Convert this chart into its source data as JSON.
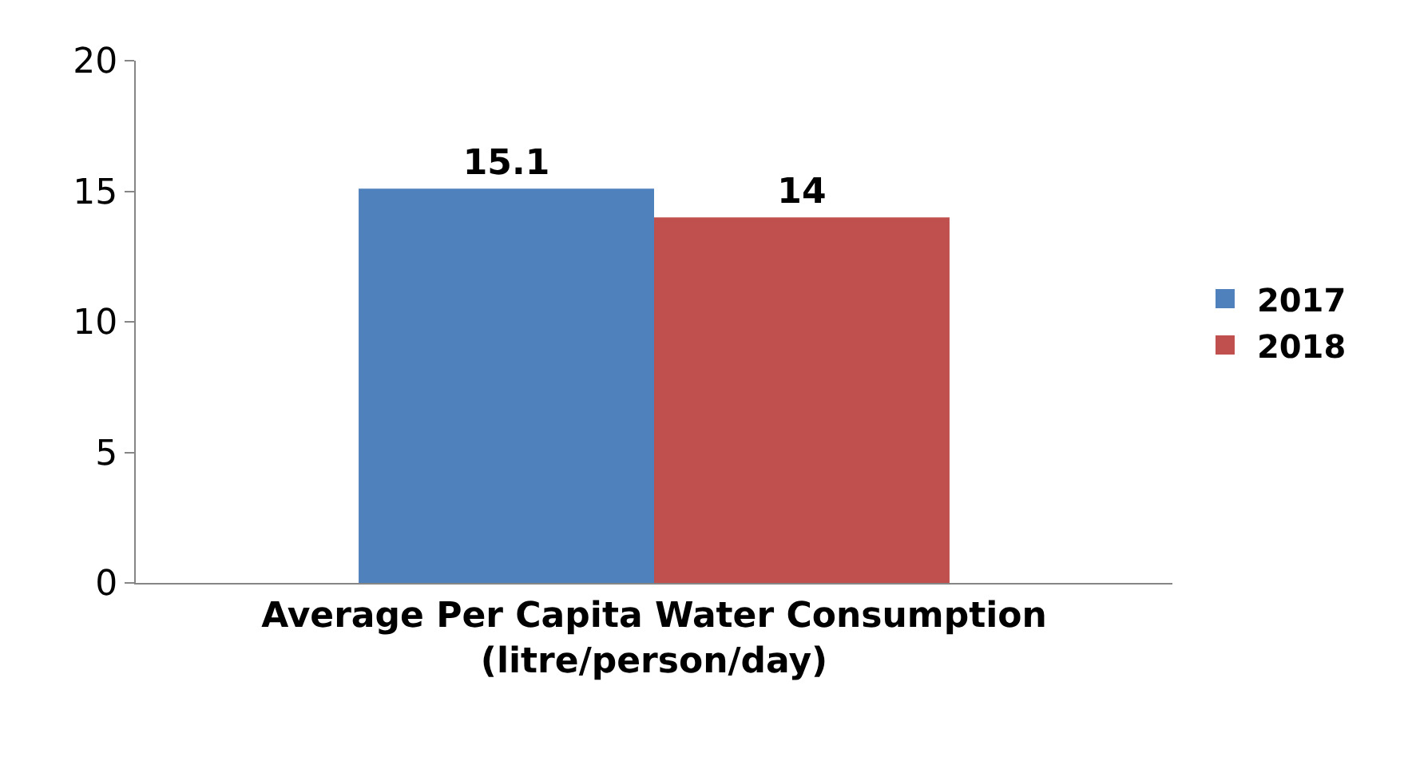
{
  "chart_data": {
    "type": "bar",
    "categories": [
      "Average Per Capita Water Consumption\n(litre/person/day)"
    ],
    "series": [
      {
        "name": "2017",
        "color": "#4f81bd",
        "values": [
          15.1
        ]
      },
      {
        "name": "2018",
        "color": "#c0504d",
        "values": [
          14
        ]
      }
    ],
    "ylim": [
      0,
      20
    ],
    "yticks": [
      0,
      5,
      10,
      15,
      20
    ],
    "legend": "right",
    "data_labels": true
  }
}
